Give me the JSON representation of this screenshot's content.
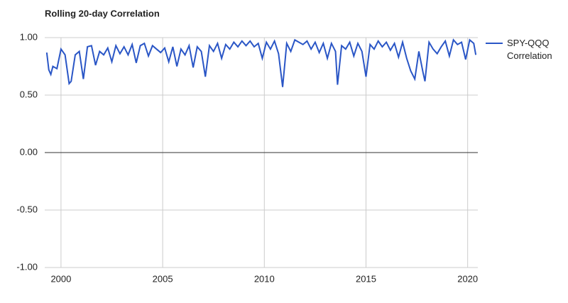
{
  "chart_data": {
    "type": "line",
    "title": "Rolling 20-day Correlation",
    "x": [
      1999.3,
      1999.4,
      1999.5,
      1999.6,
      1999.8,
      2000.0,
      2000.2,
      2000.4,
      2000.5,
      2000.7,
      2000.9,
      2001.1,
      2001.3,
      2001.5,
      2001.7,
      2001.9,
      2002.1,
      2002.3,
      2002.5,
      2002.7,
      2002.9,
      2003.1,
      2003.3,
      2003.5,
      2003.7,
      2003.9,
      2004.1,
      2004.3,
      2004.5,
      2004.7,
      2004.9,
      2005.1,
      2005.3,
      2005.5,
      2005.7,
      2005.9,
      2006.1,
      2006.3,
      2006.5,
      2006.7,
      2006.9,
      2007.1,
      2007.3,
      2007.5,
      2007.7,
      2007.9,
      2008.1,
      2008.3,
      2008.5,
      2008.7,
      2008.9,
      2009.1,
      2009.3,
      2009.5,
      2009.7,
      2009.9,
      2010.1,
      2010.3,
      2010.5,
      2010.7,
      2010.9,
      2011.1,
      2011.3,
      2011.5,
      2011.7,
      2011.9,
      2012.1,
      2012.3,
      2012.5,
      2012.7,
      2012.9,
      2013.1,
      2013.3,
      2013.5,
      2013.6,
      2013.8,
      2014.0,
      2014.2,
      2014.4,
      2014.6,
      2014.8,
      2015.0,
      2015.2,
      2015.4,
      2015.6,
      2015.8,
      2016.0,
      2016.2,
      2016.4,
      2016.6,
      2016.8,
      2017.0,
      2017.2,
      2017.4,
      2017.6,
      2017.8,
      2017.9,
      2018.1,
      2018.3,
      2018.5,
      2018.7,
      2018.9,
      2019.1,
      2019.3,
      2019.5,
      2019.7,
      2019.9,
      2020.1,
      2020.3,
      2020.4
    ],
    "series": [
      {
        "name": "SPY-QQQ Correlation",
        "color": "#2a56c6",
        "values": [
          0.87,
          0.72,
          0.68,
          0.75,
          0.73,
          0.9,
          0.85,
          0.6,
          0.62,
          0.85,
          0.88,
          0.64,
          0.92,
          0.93,
          0.76,
          0.88,
          0.85,
          0.91,
          0.79,
          0.93,
          0.86,
          0.92,
          0.85,
          0.94,
          0.78,
          0.93,
          0.95,
          0.84,
          0.93,
          0.9,
          0.87,
          0.91,
          0.79,
          0.92,
          0.75,
          0.9,
          0.85,
          0.93,
          0.74,
          0.92,
          0.88,
          0.66,
          0.93,
          0.88,
          0.95,
          0.82,
          0.94,
          0.9,
          0.96,
          0.92,
          0.97,
          0.93,
          0.97,
          0.92,
          0.95,
          0.82,
          0.96,
          0.9,
          0.97,
          0.86,
          0.57,
          0.95,
          0.88,
          0.98,
          0.96,
          0.94,
          0.97,
          0.9,
          0.96,
          0.87,
          0.95,
          0.82,
          0.95,
          0.88,
          0.59,
          0.93,
          0.9,
          0.96,
          0.84,
          0.95,
          0.88,
          0.66,
          0.94,
          0.9,
          0.97,
          0.92,
          0.96,
          0.89,
          0.95,
          0.83,
          0.96,
          0.82,
          0.71,
          0.64,
          0.88,
          0.7,
          0.62,
          0.96,
          0.9,
          0.86,
          0.92,
          0.97,
          0.84,
          0.98,
          0.94,
          0.96,
          0.81,
          0.98,
          0.95,
          0.85
        ]
      }
    ],
    "xlim": [
      1999.2,
      2020.5
    ],
    "xticks": [
      2000,
      2005,
      2010,
      2015,
      2020
    ],
    "ylim": [
      -1,
      1
    ],
    "yticks": [
      {
        "value": 1,
        "label": "1.00"
      },
      {
        "value": 0.5,
        "label": "0.50"
      },
      {
        "value": 0,
        "label": "0.00"
      },
      {
        "value": -0.5,
        "label": "-0.50"
      },
      {
        "value": -1,
        "label": "-1.00"
      }
    ],
    "grid": true,
    "legend": "right"
  }
}
